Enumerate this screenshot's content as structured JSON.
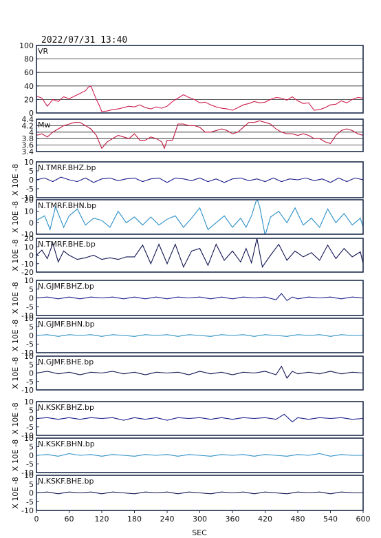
{
  "header": {
    "timestamp": "2022/07/31 13:40"
  },
  "chart_data": {
    "type": "line",
    "xlabel": "SEC",
    "xlim": [
      0,
      600
    ],
    "xticks": [
      0,
      60,
      120,
      180,
      240,
      300,
      360,
      420,
      480,
      540,
      600
    ],
    "colors": {
      "vr": "#d01e50",
      "mw": "#c0163e",
      "bhz": "#1a1f8a",
      "bhn": "#2a8fc8",
      "bhe": "#111450"
    },
    "panels": [
      {
        "label": "VR",
        "ylim": [
          0,
          100
        ],
        "yticks": [
          0,
          20,
          40,
          60,
          80,
          100
        ],
        "grid": true,
        "color": "vr",
        "x": [
          0,
          10,
          20,
          30,
          40,
          50,
          60,
          70,
          80,
          90,
          95,
          100,
          105,
          110,
          115,
          120,
          130,
          140,
          150,
          160,
          170,
          180,
          190,
          200,
          210,
          220,
          230,
          240,
          250,
          260,
          270,
          280,
          290,
          300,
          310,
          320,
          330,
          340,
          350,
          360,
          370,
          380,
          390,
          400,
          410,
          420,
          430,
          440,
          450,
          460,
          470,
          480,
          490,
          500,
          510,
          520,
          530,
          540,
          550,
          560,
          570,
          580,
          590,
          600
        ],
        "y": [
          25,
          22,
          10,
          20,
          17,
          24,
          21,
          25,
          29,
          33,
          38,
          40,
          30,
          20,
          12,
          2,
          3,
          5,
          6,
          8,
          10,
          9,
          12,
          8,
          6,
          9,
          7,
          10,
          17,
          22,
          27,
          23,
          20,
          15,
          16,
          12,
          9,
          7,
          6,
          4,
          8,
          12,
          14,
          17,
          15,
          16,
          20,
          23,
          22,
          19,
          24,
          18,
          14,
          15,
          4,
          5,
          8,
          12,
          13,
          18,
          15,
          20,
          23,
          22
        ]
      },
      {
        "label": "Mw",
        "ylim": [
          3.4,
          4.4
        ],
        "yticks": [
          3.4,
          3.6,
          3.8,
          4.0,
          4.2,
          4.4
        ],
        "grid": true,
        "color": "mw",
        "x": [
          0,
          10,
          20,
          30,
          40,
          50,
          60,
          70,
          80,
          90,
          100,
          110,
          115,
          120,
          125,
          130,
          140,
          150,
          160,
          170,
          180,
          190,
          200,
          210,
          220,
          230,
          235,
          240,
          250,
          260,
          270,
          280,
          290,
          300,
          310,
          320,
          330,
          340,
          350,
          360,
          370,
          380,
          390,
          400,
          410,
          420,
          430,
          440,
          450,
          460,
          470,
          480,
          490,
          500,
          510,
          520,
          530,
          540,
          550,
          560,
          570,
          580,
          590,
          600
        ],
        "y": [
          3.9,
          3.95,
          3.85,
          4.0,
          4.1,
          4.2,
          4.25,
          4.3,
          4.3,
          4.2,
          4.1,
          3.9,
          3.7,
          3.5,
          3.6,
          3.7,
          3.8,
          3.9,
          3.85,
          3.8,
          3.95,
          3.75,
          3.75,
          3.85,
          3.8,
          3.7,
          3.5,
          3.75,
          3.75,
          4.25,
          4.25,
          4.2,
          4.2,
          4.15,
          4.0,
          4.0,
          4.05,
          4.1,
          4.05,
          3.95,
          4.0,
          4.15,
          4.3,
          4.3,
          4.35,
          4.3,
          4.25,
          4.1,
          4.0,
          3.95,
          3.95,
          3.9,
          3.95,
          3.9,
          3.8,
          3.8,
          3.7,
          3.65,
          3.9,
          4.05,
          4.1,
          4.05,
          3.95,
          3.9
        ]
      },
      {
        "label": "N.TMRF.BHZ.bp",
        "ylim": [
          -10,
          10
        ],
        "yticks": [
          -10,
          -5,
          0,
          5,
          10
        ],
        "grid": false,
        "color": "bhz",
        "x": [
          0,
          15,
          30,
          45,
          60,
          75,
          90,
          105,
          120,
          135,
          150,
          165,
          180,
          195,
          210,
          225,
          240,
          255,
          270,
          285,
          300,
          315,
          330,
          345,
          360,
          375,
          390,
          405,
          420,
          435,
          450,
          465,
          480,
          495,
          510,
          525,
          540,
          555,
          570,
          585,
          600
        ],
        "y": [
          0,
          1,
          -1,
          1.5,
          0,
          -1,
          1,
          -1.5,
          0.5,
          1,
          -0.5,
          0.5,
          1,
          -1,
          0.5,
          1,
          -1.5,
          1,
          0.5,
          -0.5,
          1,
          -1,
          0.5,
          -1.5,
          0.5,
          1,
          -0.5,
          0.5,
          -1,
          1,
          -1,
          0.5,
          0,
          1,
          -0.5,
          0.5,
          -1.5,
          1,
          -1,
          1,
          0
        ]
      },
      {
        "label": "N.TMRF.BHN.bp",
        "ylim": [
          -10,
          20
        ],
        "yticks": [
          -10,
          0,
          10,
          20
        ],
        "grid": false,
        "color": "bhn",
        "x": [
          0,
          15,
          25,
          35,
          50,
          60,
          75,
          90,
          105,
          120,
          135,
          150,
          165,
          180,
          195,
          210,
          225,
          240,
          255,
          270,
          285,
          300,
          315,
          330,
          345,
          360,
          375,
          385,
          395,
          405,
          410,
          420,
          430,
          445,
          460,
          475,
          490,
          505,
          520,
          535,
          550,
          565,
          580,
          595,
          600
        ],
        "y": [
          2,
          6,
          -6,
          14,
          -4,
          6,
          12,
          -2,
          4,
          2,
          -4,
          10,
          0,
          5,
          -2,
          5,
          -2,
          3,
          6,
          -4,
          4,
          13,
          -6,
          0,
          6,
          -4,
          4,
          -4,
          6,
          21,
          14,
          -11,
          5,
          10,
          0,
          13,
          -2,
          4,
          -4,
          12,
          0,
          8,
          -2,
          4,
          -4
        ]
      },
      {
        "label": "N.TMRF.BHE.bp",
        "ylim": [
          -20,
          20
        ],
        "yticks": [
          -20,
          -10,
          0,
          10,
          20
        ],
        "grid": false,
        "color": "bhe",
        "x": [
          0,
          10,
          20,
          30,
          40,
          50,
          60,
          75,
          90,
          105,
          120,
          135,
          150,
          165,
          180,
          195,
          210,
          225,
          240,
          255,
          270,
          285,
          300,
          315,
          330,
          345,
          360,
          375,
          385,
          395,
          405,
          415,
          430,
          445,
          460,
          475,
          490,
          505,
          520,
          535,
          550,
          565,
          580,
          595,
          600
        ],
        "y": [
          0,
          6,
          -4,
          14,
          -8,
          5,
          0,
          -5,
          -3,
          0,
          -5,
          -3,
          -5,
          -2,
          -2,
          12,
          -10,
          13,
          -10,
          13,
          -14,
          5,
          8,
          -12,
          13,
          -6,
          5,
          -8,
          8,
          -9,
          20,
          -14,
          0,
          13,
          -6,
          5,
          -2,
          3,
          -6,
          12,
          -4,
          8,
          -2,
          4,
          -10
        ]
      },
      {
        "label": "N.GJMF.BHZ.bp",
        "ylim": [
          -10,
          10
        ],
        "yticks": [
          -10,
          -5,
          0,
          5,
          10
        ],
        "grid": false,
        "color": "bhz",
        "x": [
          0,
          20,
          40,
          60,
          80,
          100,
          120,
          140,
          160,
          180,
          200,
          220,
          240,
          260,
          280,
          300,
          320,
          340,
          360,
          380,
          400,
          420,
          440,
          450,
          460,
          470,
          480,
          500,
          520,
          540,
          560,
          580,
          600
        ],
        "y": [
          0,
          0.5,
          -0.5,
          0.5,
          -0.5,
          0.5,
          0,
          0.5,
          -0.5,
          0.5,
          -0.5,
          0.5,
          -0.5,
          0.5,
          0,
          0.5,
          -0.5,
          0.5,
          -0.5,
          0.5,
          0,
          0.5,
          -1,
          2.5,
          -1.5,
          0.5,
          -0.5,
          0.5,
          0,
          0.5,
          -0.5,
          0.5,
          0
        ]
      },
      {
        "label": "N.GJMF.BHN.bp",
        "ylim": [
          -10,
          10
        ],
        "yticks": [
          -10,
          -5,
          0,
          5,
          10
        ],
        "grid": false,
        "color": "bhn",
        "x": [
          0,
          20,
          40,
          60,
          80,
          100,
          120,
          140,
          160,
          180,
          200,
          220,
          240,
          260,
          280,
          300,
          320,
          340,
          360,
          380,
          400,
          420,
          440,
          460,
          480,
          500,
          520,
          540,
          560,
          580,
          600
        ],
        "y": [
          0,
          0.5,
          -0.5,
          0.5,
          0,
          0.5,
          -0.5,
          0.5,
          0,
          -0.5,
          0.5,
          0,
          0.5,
          -0.5,
          0.5,
          0,
          -0.5,
          0.5,
          0,
          0.5,
          -0.5,
          0.5,
          0,
          -0.5,
          0.5,
          0,
          0.5,
          -0.5,
          0.5,
          0,
          0
        ]
      },
      {
        "label": "N.GJMF.BHE.bp",
        "ylim": [
          -10,
          10
        ],
        "yticks": [
          -10,
          -5,
          0,
          5,
          10
        ],
        "grid": false,
        "color": "bhe",
        "x": [
          0,
          20,
          40,
          60,
          80,
          100,
          120,
          140,
          160,
          180,
          200,
          220,
          240,
          260,
          280,
          300,
          320,
          340,
          360,
          380,
          400,
          420,
          440,
          450,
          460,
          470,
          480,
          500,
          520,
          540,
          560,
          580,
          600
        ],
        "y": [
          0,
          1,
          -0.5,
          0.5,
          -1,
          0.5,
          0,
          1,
          -0.5,
          0.5,
          -1,
          0.5,
          0,
          0.5,
          -1,
          1,
          -0.5,
          0.5,
          -1,
          0.5,
          0,
          1,
          -1,
          4,
          -3,
          1,
          -0.5,
          0.5,
          -0.5,
          1,
          -0.5,
          0.5,
          0
        ]
      },
      {
        "label": "N.KSKF.BHZ.bp",
        "ylim": [
          -10,
          10
        ],
        "yticks": [
          -10,
          -5,
          0,
          5,
          10
        ],
        "grid": false,
        "color": "bhz",
        "x": [
          0,
          20,
          40,
          60,
          80,
          100,
          120,
          140,
          160,
          180,
          200,
          220,
          240,
          260,
          280,
          300,
          320,
          340,
          360,
          380,
          400,
          420,
          440,
          455,
          470,
          480,
          500,
          520,
          540,
          560,
          580,
          600
        ],
        "y": [
          0,
          0.5,
          -0.5,
          0.5,
          -0.5,
          0.5,
          0,
          0.5,
          -1,
          0.5,
          -0.5,
          0.5,
          -1,
          0.5,
          0,
          0.5,
          -0.5,
          0.5,
          -0.5,
          0.5,
          0,
          0.5,
          -0.5,
          2.5,
          -2,
          0.5,
          -0.5,
          0.5,
          0,
          0.5,
          -0.5,
          0
        ]
      },
      {
        "label": "N.KSKF.BHN.bp",
        "ylim": [
          -10,
          10
        ],
        "yticks": [
          -10,
          -5,
          0,
          5,
          10
        ],
        "grid": false,
        "color": "bhn",
        "x": [
          0,
          20,
          40,
          60,
          80,
          100,
          120,
          140,
          160,
          180,
          200,
          220,
          240,
          260,
          280,
          300,
          320,
          340,
          360,
          380,
          400,
          420,
          440,
          460,
          480,
          500,
          520,
          540,
          560,
          580,
          600
        ],
        "y": [
          0,
          0.5,
          -0.5,
          1,
          0,
          0.5,
          -0.5,
          0.5,
          0,
          -0.5,
          0.5,
          0,
          0.5,
          -0.5,
          0.5,
          0,
          -0.5,
          0.5,
          0,
          0.5,
          -0.5,
          0.5,
          0,
          -0.5,
          0.5,
          0,
          1,
          -0.5,
          0.5,
          0,
          0
        ]
      },
      {
        "label": "N.KSKF.BHE.bp",
        "ylim": [
          -10,
          10
        ],
        "yticks": [
          -10,
          -5,
          0,
          5,
          10
        ],
        "grid": false,
        "color": "bhe",
        "x": [
          0,
          20,
          40,
          60,
          80,
          100,
          120,
          140,
          160,
          180,
          200,
          220,
          240,
          260,
          280,
          300,
          320,
          340,
          360,
          380,
          400,
          420,
          440,
          460,
          480,
          500,
          520,
          540,
          560,
          580,
          600
        ],
        "y": [
          0,
          0.5,
          -0.5,
          0.5,
          0,
          0.5,
          -0.5,
          0.5,
          0,
          -0.5,
          0.5,
          0,
          0.5,
          -0.5,
          0.5,
          0,
          -0.5,
          0.5,
          0,
          0.5,
          -0.5,
          0.5,
          0,
          -0.5,
          0.5,
          0,
          0.5,
          -0.5,
          0.5,
          0,
          0
        ]
      }
    ],
    "ylabel_side": "X 10E -8"
  }
}
